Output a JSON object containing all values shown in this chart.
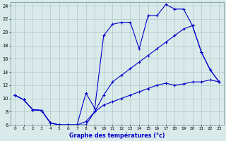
{
  "title": "Graphe des températures (°c)",
  "background_color": "#daeaea",
  "grid_color": "#b0c8c8",
  "line_color": "#0000cc",
  "xlim": [
    -0.5,
    23.5
  ],
  "ylim": [
    6,
    24.5
  ],
  "xticks": [
    0,
    1,
    2,
    3,
    4,
    5,
    6,
    7,
    8,
    9,
    10,
    11,
    12,
    13,
    14,
    15,
    16,
    17,
    18,
    19,
    20,
    21,
    22,
    23
  ],
  "yticks": [
    6,
    8,
    10,
    12,
    14,
    16,
    18,
    20,
    22,
    24
  ],
  "line1_x": [
    0,
    1,
    2,
    3,
    4,
    5,
    6,
    7,
    8,
    9,
    10,
    11,
    12,
    13,
    14,
    15,
    16,
    17,
    18,
    19,
    20,
    21,
    22,
    23
  ],
  "line1_y": [
    10.5,
    9.8,
    8.3,
    8.2,
    6.3,
    6.0,
    6.0,
    6.0,
    6.5,
    8.0,
    9.0,
    9.5,
    10.0,
    10.5,
    11.0,
    11.5,
    12.0,
    12.3,
    12.0,
    12.2,
    12.5,
    12.5,
    12.8,
    12.5
  ],
  "line2_x": [
    0,
    1,
    2,
    3,
    4,
    5,
    6,
    7,
    8,
    9,
    10,
    11,
    12,
    13,
    14,
    15,
    16,
    17,
    18,
    19,
    20,
    21,
    22,
    23
  ],
  "line2_y": [
    10.5,
    9.8,
    8.3,
    8.2,
    6.3,
    6.0,
    6.0,
    6.0,
    10.8,
    8.5,
    19.5,
    21.2,
    21.5,
    21.5,
    17.5,
    22.5,
    22.5,
    24.2,
    23.5,
    23.5,
    21.0,
    17.0,
    14.3,
    12.5
  ],
  "line3_x": [
    0,
    1,
    2,
    3,
    4,
    5,
    6,
    7,
    8,
    9,
    10,
    11,
    12,
    13,
    14,
    15,
    16,
    17,
    18,
    19,
    20,
    21,
    22,
    23
  ],
  "line3_y": [
    10.5,
    9.8,
    8.3,
    8.2,
    6.3,
    6.0,
    6.0,
    6.0,
    6.0,
    8.0,
    10.5,
    12.5,
    13.5,
    14.5,
    15.5,
    16.5,
    17.5,
    18.5,
    19.5,
    20.5,
    21.0,
    17.0,
    14.3,
    12.5
  ]
}
